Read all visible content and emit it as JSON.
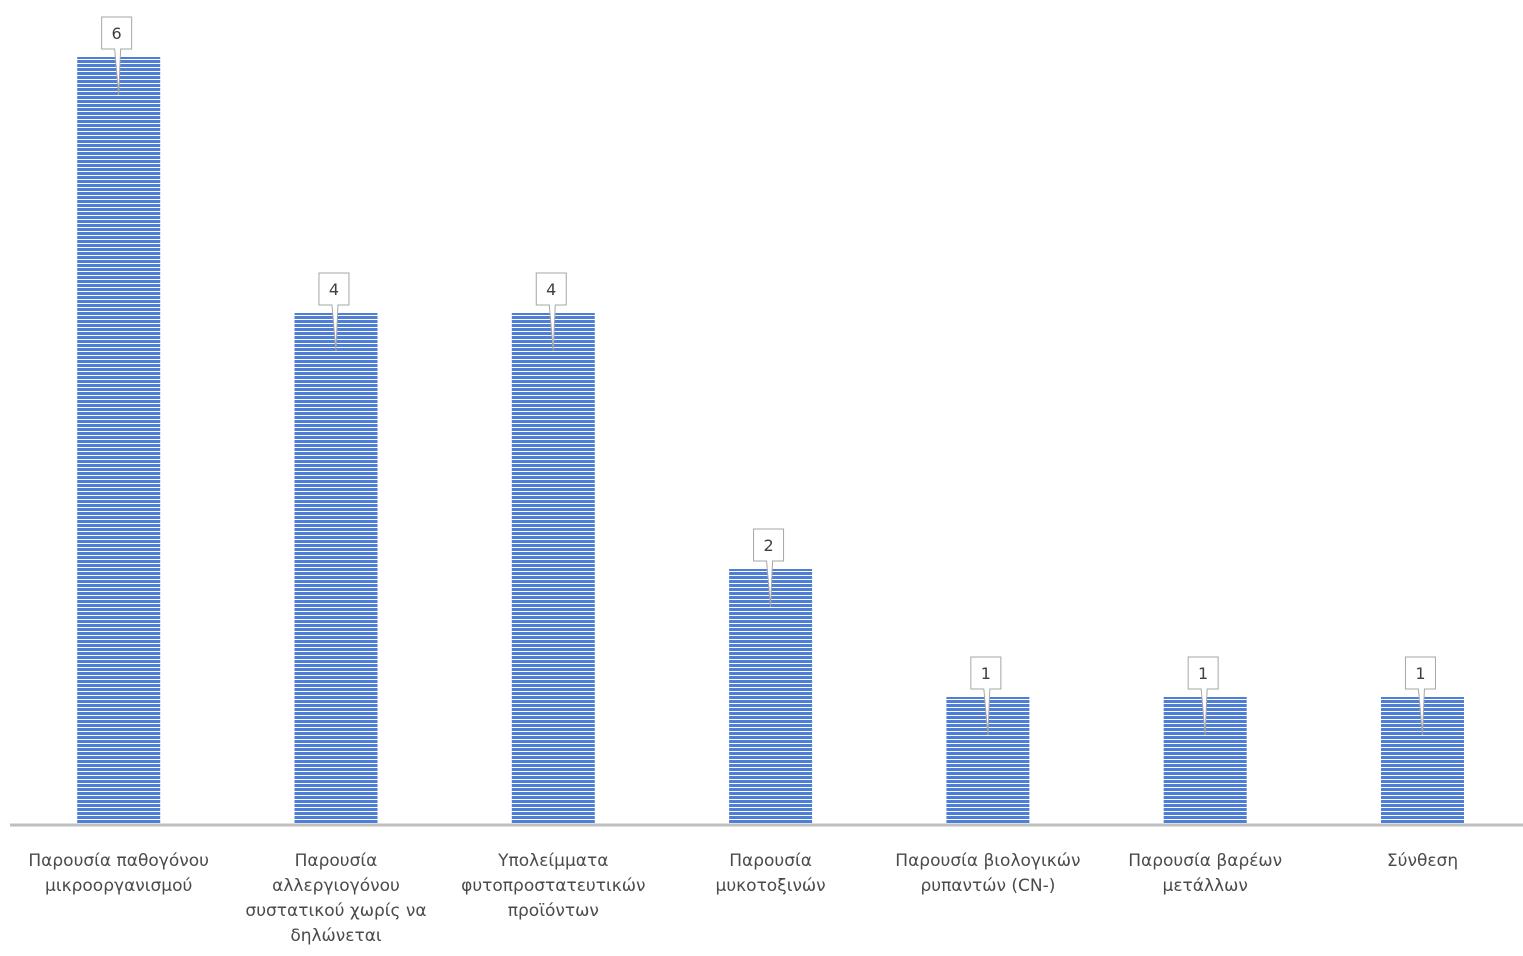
{
  "chart_data": {
    "type": "bar",
    "categories": [
      [
        "Παρουσία παθογόνου",
        "μικροοργανισμού"
      ],
      [
        "Παρουσία",
        "αλλεργιογόνου",
        "συστατικού χωρίς να",
        "δηλώνεται"
      ],
      [
        "Υπολείμματα",
        "φυτοπροστατευτικών",
        "προϊόντων"
      ],
      [
        "Παρουσία",
        "μυκοτοξινών"
      ],
      [
        "Παρουσία βιολογικών",
        "ρυπαντών (CN-)"
      ],
      [
        "Παρουσία βαρέων",
        "μετάλλων"
      ],
      [
        "Σύνθεση"
      ]
    ],
    "values": [
      6,
      4,
      4,
      2,
      1,
      1,
      1
    ],
    "value_labels": [
      "6",
      "4",
      "4",
      "2",
      "1",
      "1",
      "1"
    ],
    "ylim": [
      0,
      6
    ],
    "grid": false,
    "legend": "none",
    "bar_color": "#4f7ed6",
    "bar_stripe_color": "#ffffff",
    "axis_color": "#bfbfbf"
  }
}
